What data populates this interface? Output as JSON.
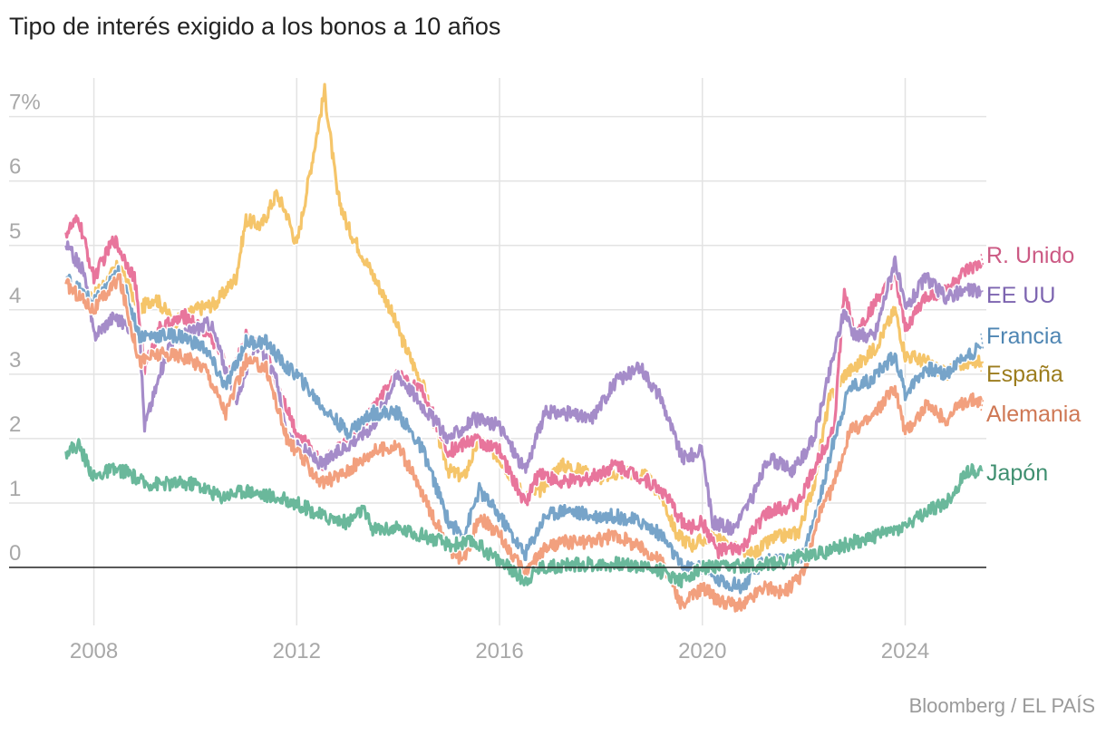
{
  "title": "Tipo de interés exigido a los bonos a 10 años",
  "source": "Bloomberg / EL PAÍS",
  "chart_data": {
    "type": "line",
    "title": "Tipo de interés exigido a los bonos a 10 años",
    "xlabel": "",
    "ylabel": "",
    "xlim": [
      2007.4,
      2025.6
    ],
    "ylim": [
      -0.9,
      7.6
    ],
    "y_ticks": [
      {
        "value": 7,
        "label": "7%"
      },
      {
        "value": 6,
        "label": "6"
      },
      {
        "value": 5,
        "label": "5"
      },
      {
        "value": 4,
        "label": "4"
      },
      {
        "value": 3,
        "label": "3"
      },
      {
        "value": 2,
        "label": "2"
      },
      {
        "value": 1,
        "label": "1"
      },
      {
        "value": 0,
        "label": "0"
      }
    ],
    "x_ticks": [
      {
        "value": 2008,
        "label": "2008"
      },
      {
        "value": 2012,
        "label": "2012"
      },
      {
        "value": 2016,
        "label": "2016"
      },
      {
        "value": 2020,
        "label": "2020"
      },
      {
        "value": 2024,
        "label": "2024"
      }
    ],
    "legend_placement": "right, at series ends",
    "series": [
      {
        "name": "España",
        "label": "España",
        "color": "#f5c56a",
        "label_color": "#9c7d1e",
        "x": [
          2007.45,
          2008.0,
          2008.5,
          2008.9,
          2009.2,
          2009.6,
          2010.0,
          2010.4,
          2010.8,
          2011.0,
          2011.3,
          2011.6,
          2011.8,
          2012.0,
          2012.3,
          2012.55,
          2012.8,
          2013.0,
          2013.4,
          2013.8,
          2014.1,
          2014.5,
          2014.8,
          2015.0,
          2015.3,
          2015.6,
          2016.0,
          2016.5,
          2016.8,
          2017.2,
          2017.6,
          2018.0,
          2018.5,
          2018.9,
          2019.2,
          2019.5,
          2019.8,
          2020.2,
          2020.6,
          2021.0,
          2021.4,
          2021.9,
          2022.2,
          2022.5,
          2022.8,
          2023.0,
          2023.4,
          2023.8,
          2024.0,
          2024.4,
          2024.8,
          2025.2,
          2025.5
        ],
        "values": [
          4.4,
          4.2,
          4.7,
          4.0,
          4.2,
          3.8,
          4.0,
          4.1,
          4.5,
          5.4,
          5.3,
          5.8,
          5.5,
          5.0,
          6.3,
          7.4,
          5.8,
          5.3,
          4.7,
          4.1,
          3.5,
          2.8,
          2.0,
          1.5,
          1.4,
          2.0,
          1.7,
          1.1,
          1.2,
          1.6,
          1.5,
          1.4,
          1.5,
          1.4,
          1.1,
          0.5,
          0.35,
          0.5,
          0.3,
          0.2,
          0.45,
          0.55,
          1.3,
          2.6,
          3.0,
          3.1,
          3.4,
          4.0,
          3.3,
          3.2,
          3.0,
          3.2,
          3.2
        ]
      },
      {
        "name": "R. Unido",
        "label": "R. Unido",
        "color": "#e8759c",
        "label_color": "#cc5a84",
        "x": [
          2007.45,
          2007.7,
          2008.0,
          2008.4,
          2008.8,
          2009.0,
          2009.3,
          2009.8,
          2010.3,
          2010.7,
          2011.0,
          2011.4,
          2011.8,
          2012.0,
          2012.5,
          2012.9,
          2013.3,
          2013.8,
          2014.0,
          2014.5,
          2015.0,
          2015.5,
          2016.0,
          2016.5,
          2016.8,
          2017.2,
          2017.8,
          2018.3,
          2018.8,
          2019.2,
          2019.7,
          2020.0,
          2020.3,
          2020.8,
          2021.2,
          2021.5,
          2021.9,
          2022.3,
          2022.6,
          2022.8,
          2023.0,
          2023.4,
          2023.8,
          2024.0,
          2024.4,
          2024.8,
          2025.2,
          2025.5
        ],
        "values": [
          5.2,
          5.4,
          4.5,
          5.1,
          4.5,
          3.1,
          3.7,
          3.9,
          3.6,
          3.0,
          3.6,
          3.3,
          2.5,
          2.1,
          1.6,
          1.9,
          2.2,
          2.8,
          3.0,
          2.7,
          1.8,
          2.0,
          1.8,
          1.0,
          1.5,
          1.3,
          1.4,
          1.6,
          1.4,
          1.2,
          0.6,
          0.7,
          0.25,
          0.3,
          0.8,
          0.9,
          1.0,
          1.7,
          2.2,
          4.3,
          3.6,
          4.1,
          4.5,
          3.7,
          4.2,
          4.3,
          4.6,
          4.7
        ]
      },
      {
        "name": "EE UU",
        "label": "EE UU",
        "color": "#a58cc9",
        "label_color": "#7d65b0",
        "x": [
          2007.45,
          2007.8,
          2008.0,
          2008.4,
          2008.9,
          2009.0,
          2009.5,
          2010.0,
          2010.3,
          2010.8,
          2011.2,
          2011.6,
          2011.8,
          2012.0,
          2012.5,
          2013.0,
          2013.5,
          2013.8,
          2014.0,
          2014.5,
          2015.0,
          2015.5,
          2016.0,
          2016.5,
          2016.9,
          2017.3,
          2017.8,
          2018.3,
          2018.8,
          2019.2,
          2019.6,
          2020.0,
          2020.2,
          2020.6,
          2021.0,
          2021.3,
          2021.8,
          2022.2,
          2022.5,
          2022.8,
          2023.0,
          2023.4,
          2023.8,
          2024.0,
          2024.4,
          2024.8,
          2025.2,
          2025.5
        ],
        "values": [
          5.0,
          4.6,
          3.6,
          3.9,
          3.6,
          2.2,
          3.5,
          3.7,
          3.8,
          2.6,
          3.5,
          2.9,
          2.0,
          1.9,
          1.6,
          1.9,
          2.2,
          2.7,
          3.0,
          2.5,
          2.0,
          2.3,
          2.2,
          1.5,
          2.4,
          2.4,
          2.3,
          2.9,
          3.1,
          2.6,
          1.7,
          1.8,
          0.7,
          0.6,
          1.1,
          1.7,
          1.5,
          2.0,
          3.0,
          4.0,
          3.6,
          3.6,
          4.8,
          4.0,
          4.5,
          4.2,
          4.3,
          4.3
        ]
      },
      {
        "name": "Francia",
        "label": "Francia",
        "color": "#77a4c9",
        "label_color": "#4f86b3",
        "x": [
          2007.45,
          2008.0,
          2008.5,
          2008.9,
          2009.2,
          2009.7,
          2010.2,
          2010.6,
          2011.0,
          2011.4,
          2011.8,
          2012.0,
          2012.5,
          2013.0,
          2013.5,
          2014.0,
          2014.5,
          2015.0,
          2015.3,
          2015.6,
          2016.0,
          2016.5,
          2016.9,
          2017.3,
          2017.8,
          2018.3,
          2018.8,
          2019.2,
          2019.6,
          2020.0,
          2020.3,
          2020.8,
          2021.2,
          2021.6,
          2022.0,
          2022.3,
          2022.6,
          2022.9,
          2023.3,
          2023.8,
          2024.0,
          2024.4,
          2024.8,
          2025.2,
          2025.5
        ],
        "values": [
          4.5,
          4.1,
          4.6,
          3.6,
          3.6,
          3.6,
          3.4,
          2.8,
          3.5,
          3.5,
          3.1,
          3.0,
          2.5,
          2.1,
          2.4,
          2.4,
          1.8,
          0.7,
          0.5,
          1.2,
          0.8,
          0.2,
          0.8,
          0.9,
          0.8,
          0.8,
          0.7,
          0.5,
          0.0,
          0.0,
          -0.2,
          -0.3,
          0.1,
          0.1,
          0.2,
          1.0,
          2.0,
          2.8,
          2.9,
          3.3,
          2.7,
          3.1,
          3.0,
          3.3,
          3.4
        ]
      },
      {
        "name": "Alemania",
        "label": "Alemania",
        "color": "#f2a07e",
        "label_color": "#cf7855",
        "x": [
          2007.45,
          2008.0,
          2008.5,
          2008.9,
          2009.2,
          2009.7,
          2010.2,
          2010.6,
          2011.0,
          2011.4,
          2011.8,
          2012.0,
          2012.5,
          2013.0,
          2013.5,
          2014.0,
          2014.5,
          2015.0,
          2015.3,
          2015.6,
          2016.0,
          2016.5,
          2016.9,
          2017.3,
          2017.8,
          2018.3,
          2018.8,
          2019.2,
          2019.6,
          2020.0,
          2020.3,
          2020.8,
          2021.2,
          2021.6,
          2022.0,
          2022.3,
          2022.6,
          2022.9,
          2023.3,
          2023.8,
          2024.0,
          2024.4,
          2024.8,
          2025.2,
          2025.5
        ],
        "values": [
          4.4,
          4.0,
          4.5,
          3.2,
          3.3,
          3.3,
          3.1,
          2.4,
          3.2,
          3.1,
          2.0,
          1.8,
          1.3,
          1.5,
          1.8,
          1.9,
          1.1,
          0.3,
          0.1,
          0.8,
          0.5,
          -0.1,
          0.3,
          0.4,
          0.4,
          0.5,
          0.3,
          0.1,
          -0.6,
          -0.3,
          -0.5,
          -0.6,
          -0.3,
          -0.4,
          -0.1,
          0.8,
          1.3,
          2.1,
          2.3,
          2.8,
          2.1,
          2.5,
          2.3,
          2.6,
          2.6
        ]
      },
      {
        "name": "Japón",
        "label": "Japón",
        "color": "#6ab89b",
        "label_color": "#3f8f70",
        "x": [
          2007.45,
          2007.7,
          2008.0,
          2008.3,
          2008.6,
          2009.0,
          2009.5,
          2010.0,
          2010.5,
          2011.0,
          2011.5,
          2012.0,
          2012.5,
          2013.0,
          2013.3,
          2013.5,
          2014.0,
          2014.5,
          2015.0,
          2015.5,
          2016.0,
          2016.5,
          2016.8,
          2017.5,
          2018.0,
          2018.5,
          2019.0,
          2019.6,
          2020.0,
          2020.5,
          2021.0,
          2021.5,
          2022.0,
          2022.5,
          2023.0,
          2023.5,
          2024.0,
          2024.5,
          2024.8,
          2025.0,
          2025.2,
          2025.5
        ],
        "values": [
          1.8,
          1.9,
          1.4,
          1.5,
          1.5,
          1.3,
          1.3,
          1.3,
          1.1,
          1.2,
          1.1,
          1.0,
          0.8,
          0.7,
          0.9,
          0.6,
          0.6,
          0.5,
          0.35,
          0.4,
          0.1,
          -0.2,
          0.0,
          0.05,
          0.05,
          0.05,
          0.0,
          -0.2,
          0.0,
          0.0,
          0.05,
          0.05,
          0.2,
          0.25,
          0.4,
          0.5,
          0.65,
          0.9,
          1.0,
          1.2,
          1.5,
          1.5
        ]
      }
    ]
  }
}
